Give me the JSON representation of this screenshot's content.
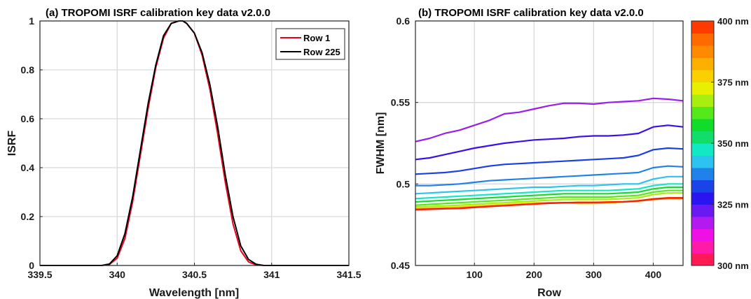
{
  "chart_data": [
    {
      "type": "line",
      "title": "(a)  TROPOMI ISRF  calibration key data v2.0.0",
      "xlabel": "Wavelength [nm]",
      "ylabel": "ISRF",
      "xlim": [
        339.5,
        341.5
      ],
      "ylim": [
        0,
        1
      ],
      "xticks": [
        "339.5",
        "340",
        "340.5",
        "341",
        "341.5"
      ],
      "yticks": [
        "0",
        "0.2",
        "0.4",
        "0.6",
        "0.8",
        "1"
      ],
      "grid": true,
      "legend_position": "top-right",
      "series": [
        {
          "name": "Row 1",
          "color": "#e8001c",
          "x": [
            339.9,
            339.95,
            340.0,
            340.05,
            340.1,
            340.15,
            340.2,
            340.25,
            340.3,
            340.35,
            340.4,
            340.425,
            340.45,
            340.5,
            340.55,
            340.6,
            340.65,
            340.7,
            340.75,
            340.8,
            340.85,
            340.9,
            340.95,
            341.0
          ],
          "y": [
            0.0,
            0.004,
            0.03,
            0.11,
            0.26,
            0.45,
            0.64,
            0.81,
            0.93,
            0.99,
            1.0,
            1.0,
            0.99,
            0.95,
            0.86,
            0.72,
            0.54,
            0.34,
            0.17,
            0.06,
            0.015,
            0.002,
            0.0,
            0.0
          ]
        },
        {
          "name": "Row 225",
          "color": "#000000",
          "x": [
            339.9,
            339.95,
            340.0,
            340.05,
            340.1,
            340.15,
            340.2,
            340.25,
            340.3,
            340.35,
            340.4,
            340.425,
            340.45,
            340.5,
            340.55,
            340.6,
            340.65,
            340.7,
            340.75,
            340.8,
            340.85,
            340.9,
            340.95,
            341.0
          ],
          "y": [
            0.0,
            0.006,
            0.04,
            0.13,
            0.28,
            0.47,
            0.66,
            0.82,
            0.94,
            0.99,
            1.0,
            1.0,
            0.99,
            0.95,
            0.87,
            0.74,
            0.57,
            0.37,
            0.2,
            0.08,
            0.025,
            0.005,
            0.0,
            0.0
          ]
        }
      ]
    },
    {
      "type": "line",
      "title": "(b)  TROPOMI ISRF  calibration key data  v2.0.0",
      "xlabel": "Row",
      "ylabel": "FWHM [nm]",
      "xlim": [
        1,
        450
      ],
      "ylim": [
        0.45,
        0.6
      ],
      "xticks": [
        "100",
        "200",
        "300",
        "400"
      ],
      "yticks": [
        "0.45",
        "0.5",
        "0.55",
        "0.6"
      ],
      "grid": true,
      "x": [
        1,
        25,
        50,
        75,
        100,
        125,
        150,
        175,
        200,
        225,
        250,
        275,
        300,
        325,
        350,
        375,
        400,
        425,
        450
      ],
      "series": [
        {
          "wavelength_nm": 330,
          "color": "#9a1df0",
          "y": [
            0.526,
            0.528,
            0.531,
            0.533,
            0.536,
            0.539,
            0.543,
            0.544,
            0.546,
            0.548,
            0.5495,
            0.5495,
            0.549,
            0.55,
            0.5505,
            0.551,
            0.5525,
            0.552,
            0.551
          ]
        },
        {
          "wavelength_nm": 335,
          "color": "#3b0ff0",
          "y": [
            0.515,
            0.516,
            0.518,
            0.52,
            0.522,
            0.5235,
            0.525,
            0.526,
            0.527,
            0.5275,
            0.528,
            0.529,
            0.5295,
            0.5295,
            0.53,
            0.531,
            0.535,
            0.536,
            0.535
          ]
        },
        {
          "wavelength_nm": 340,
          "color": "#1a3fe6",
          "y": [
            0.506,
            0.5065,
            0.507,
            0.508,
            0.5095,
            0.511,
            0.512,
            0.5125,
            0.513,
            0.5135,
            0.514,
            0.5145,
            0.515,
            0.5155,
            0.516,
            0.5175,
            0.521,
            0.522,
            0.5215
          ]
        },
        {
          "wavelength_nm": 345,
          "color": "#1e82ea",
          "y": [
            0.499,
            0.499,
            0.4995,
            0.5,
            0.501,
            0.502,
            0.5025,
            0.503,
            0.5035,
            0.504,
            0.5045,
            0.505,
            0.5055,
            0.506,
            0.5065,
            0.507,
            0.51,
            0.511,
            0.5105
          ]
        },
        {
          "wavelength_nm": 350,
          "color": "#2dc3f0",
          "y": [
            0.494,
            0.4945,
            0.495,
            0.4955,
            0.496,
            0.4965,
            0.497,
            0.4975,
            0.498,
            0.498,
            0.4985,
            0.499,
            0.499,
            0.4995,
            0.5,
            0.5,
            0.503,
            0.5045,
            0.5045
          ]
        },
        {
          "wavelength_nm": 355,
          "color": "#12e8c4",
          "y": [
            0.491,
            0.4915,
            0.492,
            0.4925,
            0.493,
            0.4935,
            0.494,
            0.4945,
            0.495,
            0.4955,
            0.496,
            0.496,
            0.496,
            0.496,
            0.4965,
            0.497,
            0.499,
            0.5,
            0.5
          ]
        },
        {
          "wavelength_nm": 360,
          "color": "#10dd2a",
          "y": [
            0.489,
            0.4895,
            0.49,
            0.4905,
            0.491,
            0.4915,
            0.492,
            0.4925,
            0.493,
            0.4935,
            0.494,
            0.494,
            0.494,
            0.494,
            0.4945,
            0.495,
            0.497,
            0.498,
            0.498
          ]
        },
        {
          "wavelength_nm": 365,
          "color": "#55e81a",
          "y": [
            0.487,
            0.4875,
            0.488,
            0.4885,
            0.489,
            0.4895,
            0.49,
            0.4905,
            0.491,
            0.4915,
            0.492,
            0.492,
            0.492,
            0.492,
            0.4925,
            0.493,
            0.495,
            0.496,
            0.496
          ]
        },
        {
          "wavelength_nm": 370,
          "color": "#a8ee10",
          "y": [
            0.486,
            0.4862,
            0.4865,
            0.487,
            0.4875,
            0.488,
            0.4885,
            0.489,
            0.4895,
            0.49,
            0.4905,
            0.4905,
            0.4905,
            0.4905,
            0.491,
            0.4915,
            0.4935,
            0.4945,
            0.4945
          ]
        },
        {
          "wavelength_nm": 375,
          "color": "#e8f000",
          "y": [
            0.485,
            0.4852,
            0.4855,
            0.486,
            0.4865,
            0.487,
            0.4875,
            0.488,
            0.4885,
            0.4885,
            0.4885,
            0.488,
            0.488,
            0.4885,
            0.489,
            0.4895,
            0.491,
            0.4915,
            0.4915
          ]
        },
        {
          "wavelength_nm": 385,
          "color": "#fbb000",
          "y": [
            0.4848,
            0.485,
            0.4852,
            0.4855,
            0.486,
            0.4865,
            0.487,
            0.4875,
            0.488,
            0.4885,
            0.4885,
            0.4885,
            0.4885,
            0.4885,
            0.489,
            0.4895,
            0.4905,
            0.491,
            0.491
          ]
        },
        {
          "wavelength_nm": 395,
          "color": "#ff6a00",
          "y": [
            0.4845,
            0.4847,
            0.485,
            0.4852,
            0.4858,
            0.4863,
            0.4868,
            0.4873,
            0.4878,
            0.4882,
            0.4884,
            0.4886,
            0.4886,
            0.4888,
            0.489,
            0.4895,
            0.4905,
            0.4912,
            0.4912
          ]
        },
        {
          "wavelength_nm": 400,
          "color": "#ff1a00",
          "y": [
            0.4842,
            0.4845,
            0.4848,
            0.485,
            0.4856,
            0.4862,
            0.4867,
            0.4872,
            0.4877,
            0.4882,
            0.4885,
            0.4887,
            0.4887,
            0.4889,
            0.4891,
            0.4897,
            0.4908,
            0.4915,
            0.4915
          ]
        }
      ],
      "colorbar": {
        "colors": [
          "#ff1a56",
          "#ff1aa8",
          "#ee10e4",
          "#b21af0",
          "#6a1af0",
          "#2a14f0",
          "#1a44e8",
          "#1e82ea",
          "#2dc3f0",
          "#12e8c4",
          "#10dd6a",
          "#10dd2a",
          "#55e81a",
          "#a8ee10",
          "#e8f000",
          "#fbd000",
          "#fbb000",
          "#ff8a00",
          "#ff6a00",
          "#ff3a00"
        ],
        "ticks": [
          "300 nm",
          "325 nm",
          "350 nm",
          "375 nm",
          "400 nm"
        ]
      }
    }
  ]
}
